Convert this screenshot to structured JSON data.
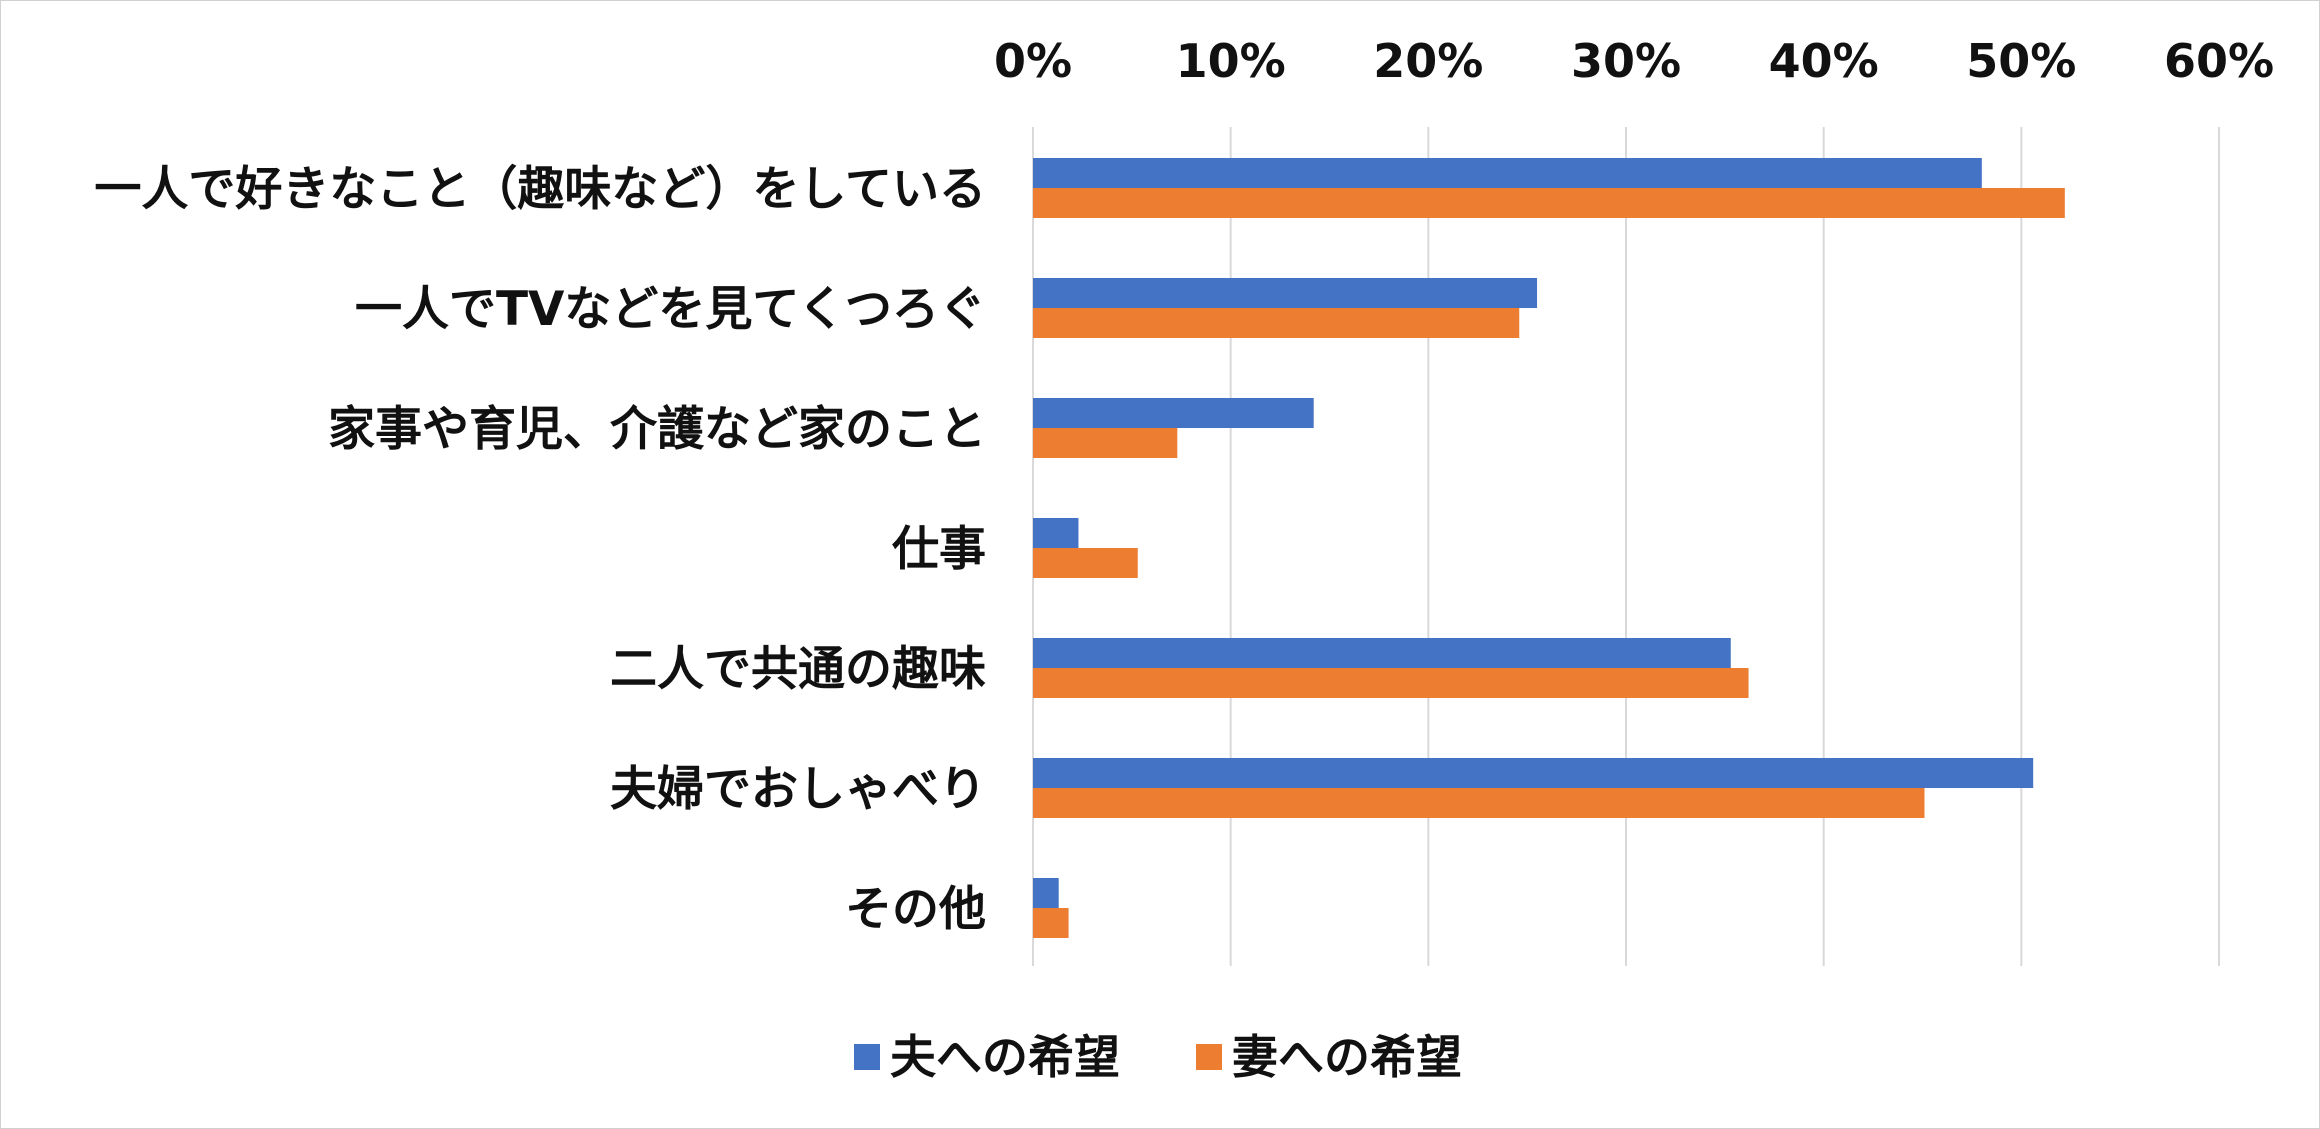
{
  "chart_data": {
    "type": "bar",
    "orientation": "horizontal",
    "categories": [
      "一人で好きなこと（趣味など）をしている",
      "一人でTVなどを見てくつろぐ",
      "家事や育児、介護など家のこと",
      "仕事",
      "二人で共通の趣味",
      "夫婦でおしゃべり",
      "その他"
    ],
    "series": [
      {
        "name": "夫への希望",
        "color": "#4472C4",
        "values": [
          48,
          25.5,
          14.2,
          2.3,
          35.3,
          50.6,
          1.3
        ]
      },
      {
        "name": "妻への希望",
        "color": "#ED7D31",
        "values": [
          52.2,
          24.6,
          7.3,
          5.3,
          36.2,
          45.1,
          1.8
        ]
      }
    ],
    "xlim": [
      0,
      60
    ],
    "x_ticks": [
      0,
      10,
      20,
      30,
      40,
      50,
      60
    ],
    "x_tick_labels": [
      "0%",
      "10%",
      "20%",
      "30%",
      "40%",
      "50%",
      "60%"
    ],
    "x_axis_position": "top",
    "grid": true,
    "gridline_color": "#D9D9D9",
    "legend_position": "bottom"
  }
}
